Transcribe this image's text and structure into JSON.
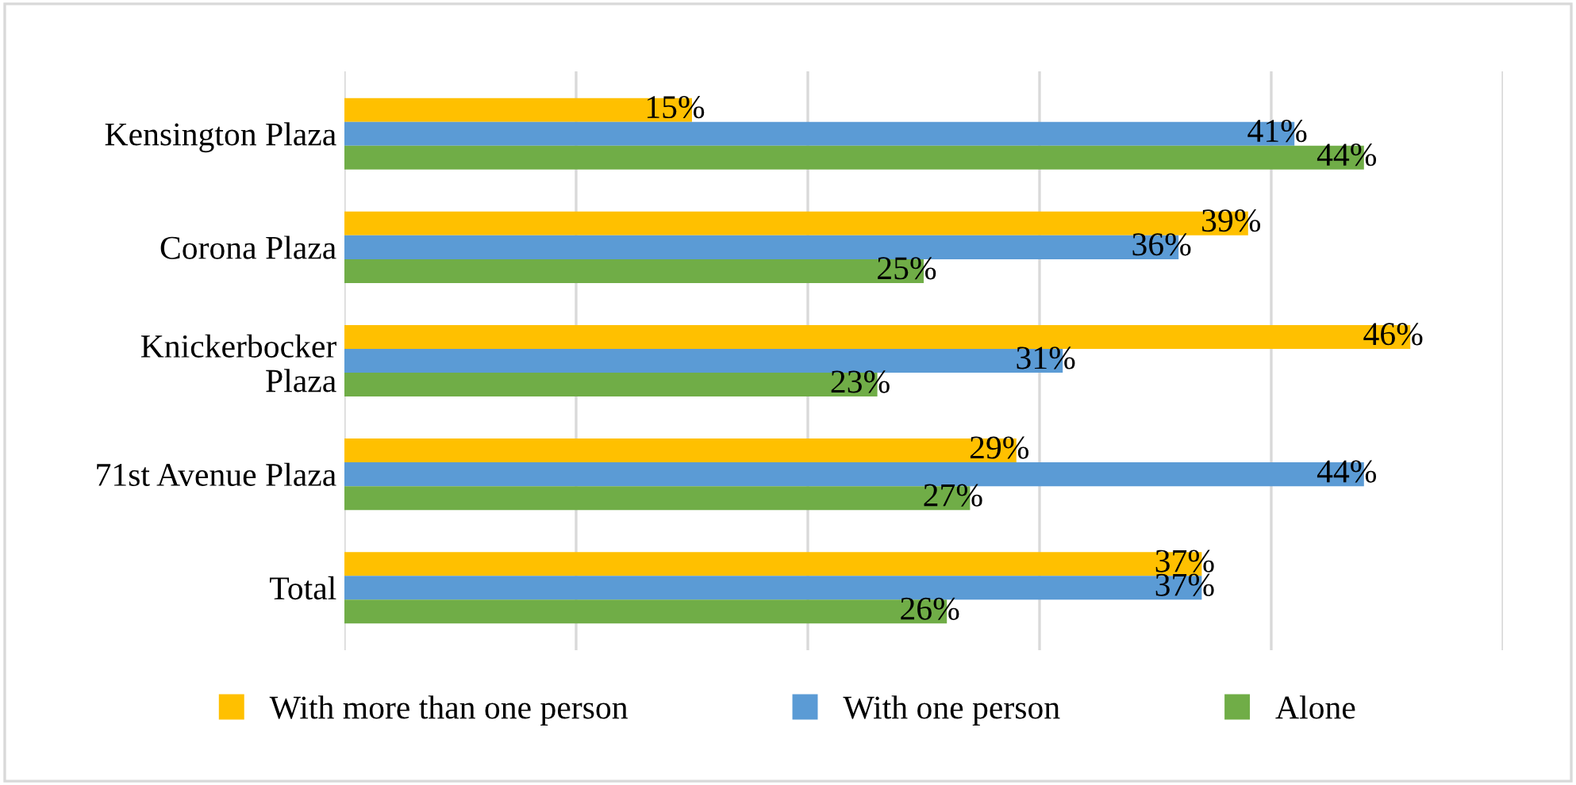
{
  "chart_data": {
    "type": "bar",
    "orientation": "horizontal",
    "categories": [
      "Kensington Plaza",
      "Corona Plaza",
      "Knickerbocker\nPlaza",
      "71st Avenue Plaza",
      "Total"
    ],
    "series": [
      {
        "name": "With more than one person",
        "color": "#ffc000",
        "values": [
          15,
          39,
          46,
          29,
          37
        ],
        "value_labels": [
          "15%",
          "39%",
          "46%",
          "29%",
          "37%"
        ]
      },
      {
        "name": "With one person",
        "color": "#5b9bd5",
        "values": [
          41,
          36,
          31,
          44,
          37
        ],
        "value_labels": [
          "41%",
          "36%",
          "31%",
          "44%",
          "37%"
        ]
      },
      {
        "name": "Alone",
        "color": "#70ad47",
        "values": [
          44,
          25,
          23,
          27,
          26
        ],
        "value_labels": [
          "44%",
          "25%",
          "23%",
          "27%",
          "26%"
        ]
      }
    ],
    "xlim": [
      0,
      50
    ],
    "xticks": [
      {
        "value": 0,
        "label": null
      },
      {
        "value": 10,
        "label": null
      },
      {
        "value": 20,
        "label": null
      },
      {
        "value": 30,
        "label": null
      },
      {
        "value": 40,
        "label": null
      },
      {
        "value": 50,
        "label": null
      }
    ],
    "tick_labels": "y",
    "grid": "x",
    "legend": "bottom"
  }
}
